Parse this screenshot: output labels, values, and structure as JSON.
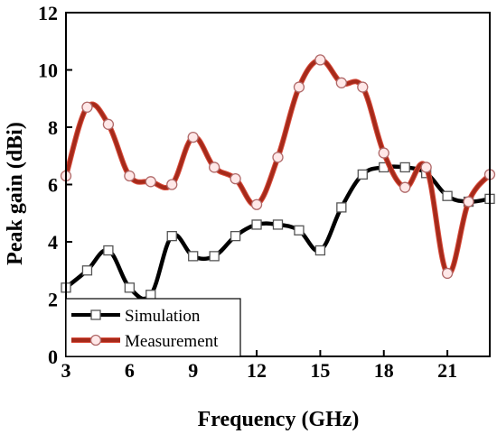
{
  "chart_data": {
    "type": "line",
    "xlabel": "Frequency (GHz)",
    "ylabel": "Peak gain (dBi)",
    "xlim": [
      3,
      23
    ],
    "ylim": [
      0,
      12
    ],
    "xticks": [
      3,
      6,
      9,
      12,
      15,
      18,
      21
    ],
    "yticks": [
      0,
      2,
      4,
      6,
      8,
      10,
      12
    ],
    "legend_position": "bottom-left",
    "grid": false,
    "series": [
      {
        "name": "Simulation",
        "color": "#000000",
        "marker": "square",
        "x": [
          3,
          4,
          5,
          6,
          7,
          8,
          9,
          10,
          11,
          12,
          13,
          14,
          15,
          16,
          17,
          18,
          19,
          20,
          21,
          22,
          23
        ],
        "y": [
          2.4,
          3.0,
          3.7,
          2.4,
          2.15,
          4.2,
          3.5,
          3.5,
          4.2,
          4.6,
          4.6,
          4.4,
          3.7,
          5.2,
          6.35,
          6.6,
          6.6,
          6.4,
          5.6,
          5.4,
          5.5
        ]
      },
      {
        "name": "Measurement",
        "color": "#a52a1a",
        "marker": "circle",
        "x": [
          3,
          4,
          5,
          6,
          7,
          8,
          9,
          10,
          11,
          12,
          13,
          14,
          15,
          16,
          17,
          18,
          19,
          20,
          21,
          22,
          23
        ],
        "y": [
          6.3,
          8.7,
          8.1,
          6.3,
          6.1,
          6.0,
          7.65,
          6.6,
          6.2,
          5.3,
          6.95,
          9.4,
          10.35,
          9.55,
          9.4,
          7.1,
          5.9,
          6.6,
          2.9,
          5.4,
          6.35
        ]
      }
    ]
  }
}
